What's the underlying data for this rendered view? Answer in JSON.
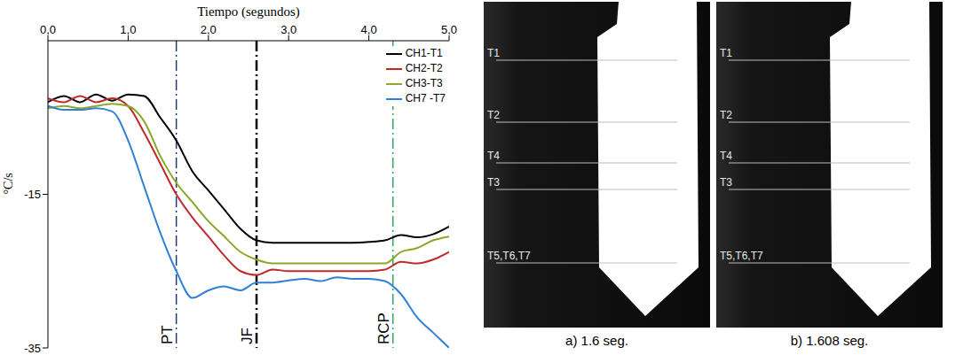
{
  "chart_data": {
    "type": "line",
    "x_label": "Tiempo (segundos)",
    "y_label": "°C/s",
    "x": [
      0,
      0.2,
      0.4,
      0.6,
      0.8,
      1.0,
      1.2,
      1.4,
      1.6,
      1.8,
      2.0,
      2.2,
      2.4,
      2.6,
      2.8,
      3.0,
      3.2,
      3.4,
      3.6,
      3.8,
      4.0,
      4.2,
      4.4,
      4.6,
      4.8,
      5.0
    ],
    "xlim": [
      0,
      5
    ],
    "xticks": [
      {
        "value": 0,
        "label": "0,0"
      },
      {
        "value": 1,
        "label": "1,0"
      },
      {
        "value": 2,
        "label": "2,0"
      },
      {
        "value": 3,
        "label": "3,0"
      },
      {
        "value": 4,
        "label": "4,0"
      },
      {
        "value": 5,
        "label": "5,0"
      }
    ],
    "ylim": [
      -35,
      5
    ],
    "yticks": [
      -35,
      -15
    ],
    "grid": false,
    "legend": "top-right",
    "series": [
      {
        "name": "CH1-T1",
        "color": "#000000",
        "values": [
          -3.0,
          -2.2,
          -3.0,
          -2.0,
          -2.8,
          -2.0,
          -2.2,
          -5.0,
          -8.0,
          -12.0,
          -14.5,
          -17.0,
          -19.5,
          -21.0,
          -21.3,
          -21.3,
          -21.3,
          -21.3,
          -21.3,
          -21.3,
          -21.2,
          -21.0,
          -20.3,
          -20.6,
          -20.2,
          -19.2
        ]
      },
      {
        "name": "CH2-T2",
        "color": "#c0282d",
        "values": [
          -2.5,
          -3.0,
          -2.2,
          -3.0,
          -2.5,
          -3.5,
          -7.0,
          -11.0,
          -15.0,
          -18.0,
          -20.5,
          -23.0,
          -25.0,
          -25.5,
          -24.8,
          -25.0,
          -25.0,
          -25.0,
          -25.0,
          -25.0,
          -25.0,
          -24.8,
          -23.8,
          -24.0,
          -23.5,
          -22.5
        ]
      },
      {
        "name": "CH3-T3",
        "color": "#8aa829",
        "values": [
          -3.8,
          -3.5,
          -3.8,
          -3.5,
          -3.2,
          -3.5,
          -5.5,
          -10.0,
          -13.5,
          -16.0,
          -18.5,
          -20.5,
          -22.5,
          -23.5,
          -24.0,
          -24.0,
          -24.0,
          -24.0,
          -24.0,
          -24.0,
          -24.0,
          -24.0,
          -22.5,
          -22.0,
          -21.0,
          -20.5
        ]
      },
      {
        "name": "CH7 -T7",
        "color": "#2f80d8",
        "values": [
          -3.5,
          -4.0,
          -4.0,
          -3.8,
          -4.2,
          -8.0,
          -14.0,
          -20.0,
          -25.0,
          -28.5,
          -27.5,
          -27.0,
          -27.5,
          -26.5,
          -26.5,
          -26.2,
          -26.0,
          -26.3,
          -25.8,
          -26.0,
          -26.0,
          -26.3,
          -28.0,
          -31.0,
          -33.0,
          -35.0
        ]
      }
    ],
    "annotations": [
      {
        "text": "PT",
        "x": 1.6,
        "color": "#1f3a7a",
        "line_style": "dashdot"
      },
      {
        "text": "JF",
        "x": 2.6,
        "color": "#000000",
        "line_style": "dashdot"
      },
      {
        "text": "RCP",
        "x": 4.3,
        "color": "#2aa860",
        "line_style": "dashdot"
      }
    ]
  },
  "images": [
    {
      "caption": "a) 1.6 seg.",
      "labels": [
        "T1",
        "T2",
        "T4",
        "T3",
        "T5,T6,T7"
      ]
    },
    {
      "caption": "b) 1.608 seg.",
      "labels": [
        "T1",
        "T2",
        "T4",
        "T3",
        "T5,T6,T7"
      ]
    }
  ]
}
